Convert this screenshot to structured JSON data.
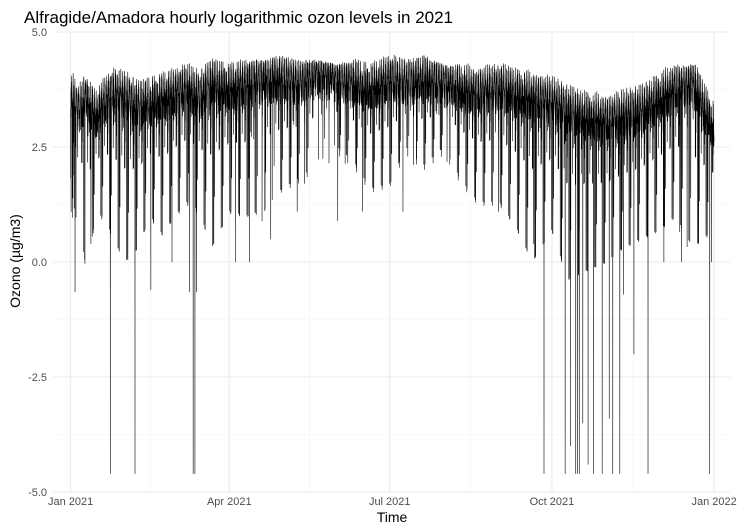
{
  "chart_data": {
    "type": "line",
    "title": "Alfragide/Amadora hourly logarithmic ozon levels in 2021",
    "xlabel": "Time",
    "ylabel": "Ozono (µg/m3)",
    "xlim": [
      "2020-12-22",
      "2022-01-10"
    ],
    "ylim": [
      -5.0,
      5.0
    ],
    "x_ticks": [
      {
        "date": "2021-01-01",
        "label": "Jan 2021"
      },
      {
        "date": "2021-04-01",
        "label": "Apr 2021"
      },
      {
        "date": "2021-07-01",
        "label": "Jul 2021"
      },
      {
        "date": "2021-10-01",
        "label": "Oct 2021"
      },
      {
        "date": "2022-01-01",
        "label": "Jan 2022"
      }
    ],
    "y_ticks": [
      {
        "value": -5.0,
        "label": "-5.0"
      },
      {
        "value": -2.5,
        "label": "-2.5"
      },
      {
        "value": 0.0,
        "label": "0.0"
      },
      {
        "value": 2.5,
        "label": "2.5"
      },
      {
        "value": 5.0,
        "label": "5.0"
      }
    ],
    "grid": true,
    "line_color": "#000000",
    "series": [
      {
        "x": [
          "2021-01-01",
          "2021-01-05",
          "2021-01-10",
          "2021-01-15",
          "2021-01-20",
          "2021-01-25",
          "2021-02-01",
          "2021-02-08",
          "2021-02-15",
          "2021-02-22",
          "2021-03-01",
          "2021-03-08",
          "2021-03-15",
          "2021-03-22",
          "2021-04-01",
          "2021-04-10",
          "2021-04-20",
          "2021-05-01",
          "2021-05-10",
          "2021-05-20",
          "2021-06-01",
          "2021-06-10",
          "2021-06-20",
          "2021-07-01",
          "2021-07-10",
          "2021-07-20",
          "2021-08-01",
          "2021-08-10",
          "2021-08-20",
          "2021-09-01",
          "2021-09-10",
          "2021-09-20",
          "2021-10-01",
          "2021-10-10",
          "2021-10-20",
          "2021-11-01",
          "2021-11-10",
          "2021-11-20",
          "2021-12-01",
          "2021-12-10",
          "2021-12-20",
          "2021-12-31"
        ],
        "y": [
          3.7,
          3.3,
          3.6,
          3.2,
          3.5,
          3.7,
          3.6,
          3.4,
          3.5,
          3.6,
          3.7,
          3.8,
          3.6,
          3.9,
          3.8,
          3.9,
          4.0,
          4.0,
          3.9,
          4.1,
          4.0,
          3.9,
          3.8,
          4.0,
          3.9,
          4.0,
          3.9,
          3.8,
          3.7,
          3.8,
          3.7,
          3.6,
          3.5,
          3.3,
          3.2,
          3.1,
          3.2,
          3.3,
          3.6,
          3.8,
          3.9,
          3.0
        ],
        "min": [
          0.7,
          1.0,
          -0.6,
          0.7,
          0.7,
          0.2,
          -0.3,
          0.0,
          0.7,
          0.3,
          0.7,
          1.0,
          0.8,
          0.0,
          0.8,
          0.7,
          0.8,
          1.3,
          1.5,
          1.8,
          2.2,
          1.9,
          1.3,
          1.4,
          2.2,
          1.8,
          2.2,
          1.5,
          1.0,
          1.0,
          0.5,
          -0.3,
          0.4,
          -0.7,
          -0.5,
          -0.3,
          0.0,
          0.2,
          0.4,
          0.7,
          0.0,
          0.4
        ],
        "max": [
          4.2,
          4.1,
          4.0,
          4.2,
          4.3,
          4.3,
          4.2,
          4.3,
          4.3,
          4.3,
          4.4,
          4.4,
          4.5,
          4.6,
          4.4,
          4.4,
          4.4,
          4.5,
          4.4,
          4.4,
          4.3,
          4.4,
          4.5,
          4.6,
          4.4,
          4.5,
          4.3,
          4.3,
          4.4,
          4.3,
          4.4,
          4.3,
          4.4,
          4.4,
          4.2,
          4.1,
          4.2,
          4.2,
          4.2,
          4.3,
          4.3,
          4.2
        ]
      }
    ],
    "spikes": [
      {
        "date": "2021-01-03",
        "value": -0.65
      },
      {
        "date": "2021-01-12",
        "value": 0.4
      },
      {
        "date": "2021-01-23",
        "value": -4.6
      },
      {
        "date": "2021-02-06",
        "value": -4.6
      },
      {
        "date": "2021-02-15",
        "value": -0.6
      },
      {
        "date": "2021-02-27",
        "value": 0.0
      },
      {
        "date": "2021-03-09",
        "value": -0.65
      },
      {
        "date": "2021-03-11",
        "value": -4.6
      },
      {
        "date": "2021-03-12",
        "value": -4.6
      },
      {
        "date": "2021-03-13",
        "value": -0.65
      },
      {
        "date": "2021-04-04",
        "value": 0.0
      },
      {
        "date": "2021-04-12",
        "value": 0.0
      },
      {
        "date": "2021-04-24",
        "value": 0.5
      },
      {
        "date": "2021-05-09",
        "value": 1.1
      },
      {
        "date": "2021-06-01",
        "value": 0.9
      },
      {
        "date": "2021-06-15",
        "value": 1.1
      },
      {
        "date": "2021-07-08",
        "value": 1.1
      },
      {
        "date": "2021-09-20",
        "value": 0.4
      },
      {
        "date": "2021-09-26",
        "value": -4.6
      },
      {
        "date": "2021-10-06",
        "value": 0.0
      },
      {
        "date": "2021-10-08",
        "value": -4.6
      },
      {
        "date": "2021-10-11",
        "value": -4.0
      },
      {
        "date": "2021-10-14",
        "value": -4.6
      },
      {
        "date": "2021-10-15",
        "value": -4.6
      },
      {
        "date": "2021-10-16",
        "value": -4.6
      },
      {
        "date": "2021-10-18",
        "value": -3.5
      },
      {
        "date": "2021-10-21",
        "value": -4.4
      },
      {
        "date": "2021-10-24",
        "value": -4.6
      },
      {
        "date": "2021-10-29",
        "value": -4.6
      },
      {
        "date": "2021-11-02",
        "value": -3.4
      },
      {
        "date": "2021-11-04",
        "value": -4.6
      },
      {
        "date": "2021-11-08",
        "value": -4.6
      },
      {
        "date": "2021-11-10",
        "value": -0.7
      },
      {
        "date": "2021-11-16",
        "value": -2.0
      },
      {
        "date": "2021-11-24",
        "value": -4.6
      },
      {
        "date": "2021-12-03",
        "value": 0.0
      },
      {
        "date": "2021-12-13",
        "value": 0.0
      },
      {
        "date": "2021-12-29",
        "value": -4.6
      },
      {
        "date": "2021-12-30",
        "value": 0.0
      }
    ]
  }
}
